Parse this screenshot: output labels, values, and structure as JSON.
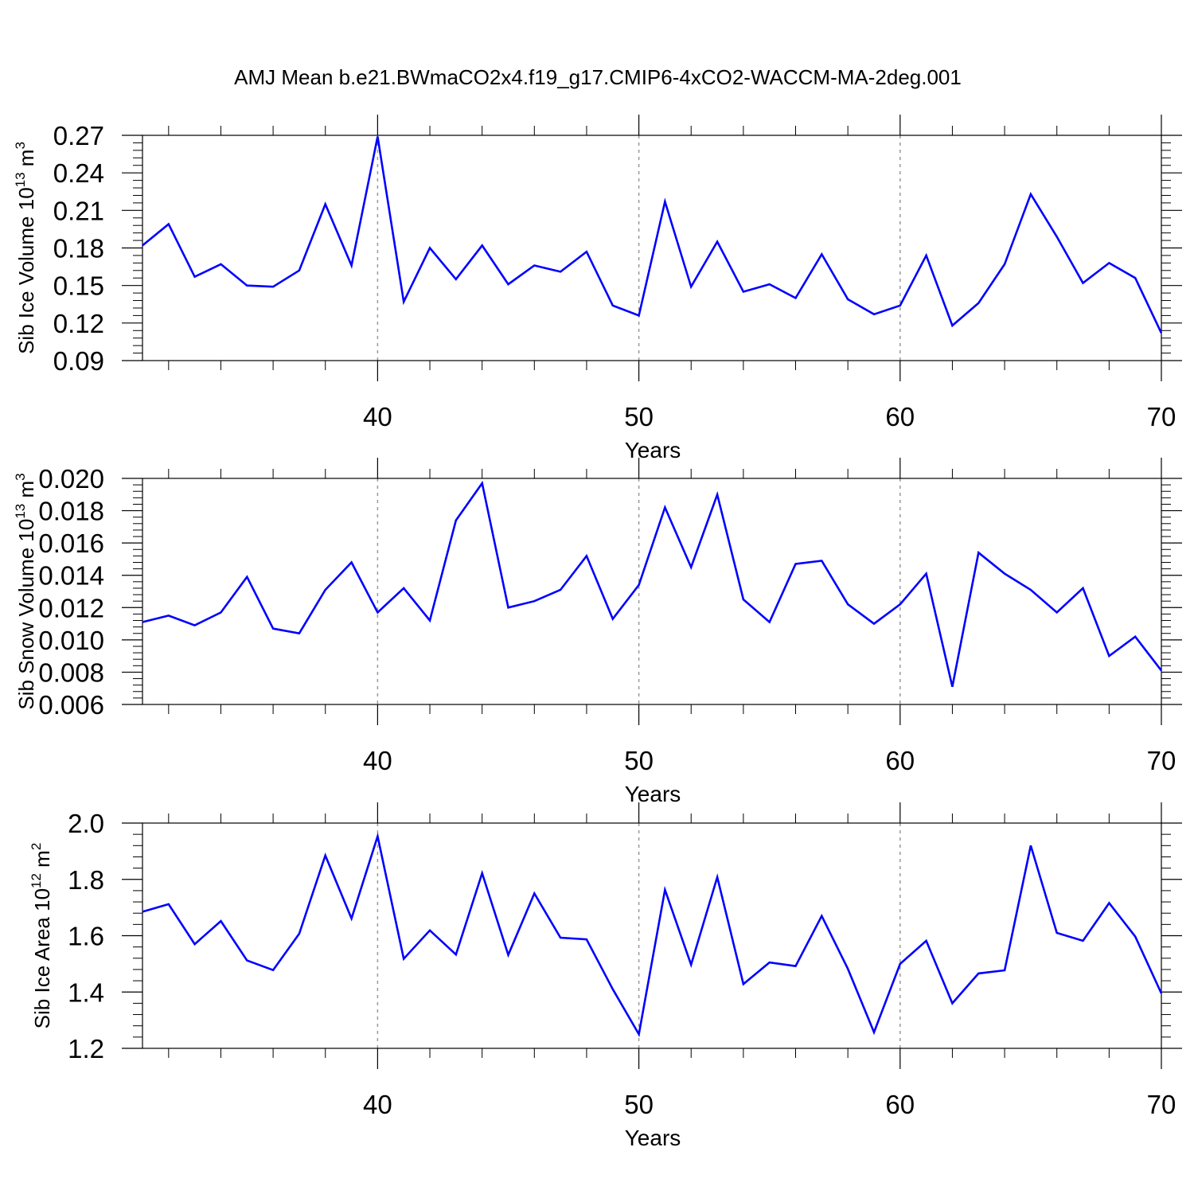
{
  "title": "AMJ Mean b.e21.BWmaCO2x4.f19_g17.CMIP6-4xCO2-WACCM-MA-2deg.001",
  "colors": {
    "line": "#0000ff",
    "axis": "#000000",
    "grid": "#999999",
    "background": "#ffffff"
  },
  "chart_data": [
    {
      "type": "line",
      "ylabel": {
        "text": "Sib Ice Volume 10",
        "sup": "13",
        "unit": " m",
        "unit_sup": "3"
      },
      "xlabel": "Years",
      "xlim": [
        31,
        70
      ],
      "ylim": [
        0.09,
        0.27
      ],
      "xticks": [
        40,
        50,
        60,
        70
      ],
      "xtick_labels": [
        "40",
        "50",
        "60",
        "70"
      ],
      "yticks": [
        0.09,
        0.12,
        0.15,
        0.18,
        0.21,
        0.24,
        0.27
      ],
      "ytick_labels": [
        "0.09",
        "0.12",
        "0.15",
        "0.18",
        "0.21",
        "0.24",
        "0.27"
      ],
      "ygrid_minor_step": 0.006,
      "vgrid": [
        40,
        50,
        60
      ],
      "x": [
        31,
        32,
        33,
        34,
        35,
        36,
        37,
        38,
        39,
        40,
        41,
        42,
        43,
        44,
        45,
        46,
        47,
        48,
        49,
        50,
        51,
        52,
        53,
        54,
        55,
        56,
        57,
        58,
        59,
        60,
        61,
        62,
        63,
        64,
        65,
        66,
        67,
        68,
        69,
        70
      ],
      "series": [
        {
          "name": "Sib Ice Volume",
          "values": [
            0.182,
            0.199,
            0.157,
            0.167,
            0.15,
            0.149,
            0.162,
            0.215,
            0.166,
            0.269,
            0.137,
            0.18,
            0.155,
            0.182,
            0.151,
            0.166,
            0.161,
            0.177,
            0.134,
            0.126,
            0.217,
            0.149,
            0.185,
            0.145,
            0.151,
            0.14,
            0.175,
            0.139,
            0.127,
            0.134,
            0.174,
            0.118,
            0.136,
            0.167,
            0.223,
            0.189,
            0.152,
            0.168,
            0.156,
            0.112
          ]
        }
      ]
    },
    {
      "type": "line",
      "ylabel": {
        "text": "Sib Snow Volume 10",
        "sup": "13",
        "unit": " m",
        "unit_sup": "3"
      },
      "xlabel": "Years",
      "xlim": [
        31,
        70
      ],
      "ylim": [
        0.006,
        0.02
      ],
      "xticks": [
        40,
        50,
        60,
        70
      ],
      "xtick_labels": [
        "40",
        "50",
        "60",
        "70"
      ],
      "yticks": [
        0.006,
        0.008,
        0.01,
        0.012,
        0.014,
        0.016,
        0.018,
        0.02
      ],
      "ytick_labels": [
        "0.006",
        "0.008",
        "0.010",
        "0.012",
        "0.014",
        "0.016",
        "0.018",
        "0.020"
      ],
      "ygrid_minor_step": 0.0004,
      "vgrid": [
        40,
        50,
        60
      ],
      "x": [
        31,
        32,
        33,
        34,
        35,
        36,
        37,
        38,
        39,
        40,
        41,
        42,
        43,
        44,
        45,
        46,
        47,
        48,
        49,
        50,
        51,
        52,
        53,
        54,
        55,
        56,
        57,
        58,
        59,
        60,
        61,
        62,
        63,
        64,
        65,
        66,
        67,
        68,
        69,
        70
      ],
      "series": [
        {
          "name": "Sib Snow Volume",
          "values": [
            0.0111,
            0.0115,
            0.0109,
            0.0117,
            0.0139,
            0.0107,
            0.0104,
            0.0131,
            0.0148,
            0.0117,
            0.0132,
            0.0112,
            0.0174,
            0.0197,
            0.012,
            0.0124,
            0.0131,
            0.0152,
            0.0113,
            0.0134,
            0.0182,
            0.0145,
            0.019,
            0.0125,
            0.0111,
            0.0147,
            0.0149,
            0.0122,
            0.011,
            0.0122,
            0.0141,
            0.0071,
            0.0154,
            0.0141,
            0.0131,
            0.0117,
            0.0132,
            0.009,
            0.0102,
            0.0081
          ]
        }
      ]
    },
    {
      "type": "line",
      "ylabel": {
        "text": "Sib Ice Area 10",
        "sup": "12",
        "unit": " m",
        "unit_sup": "2"
      },
      "xlabel": "Years",
      "xlim": [
        31,
        70
      ],
      "ylim": [
        1.2,
        2.0
      ],
      "xticks": [
        40,
        50,
        60,
        70
      ],
      "xtick_labels": [
        "40",
        "50",
        "60",
        "70"
      ],
      "yticks": [
        1.2,
        1.4,
        1.6,
        1.8,
        2.0
      ],
      "ytick_labels": [
        "1.2",
        "1.4",
        "1.6",
        "1.8",
        "2.0"
      ],
      "ygrid_minor_step": 0.04,
      "vgrid": [
        40,
        50,
        60
      ],
      "x": [
        31,
        32,
        33,
        34,
        35,
        36,
        37,
        38,
        39,
        40,
        41,
        42,
        43,
        44,
        45,
        46,
        47,
        48,
        49,
        50,
        51,
        52,
        53,
        54,
        55,
        56,
        57,
        58,
        59,
        60,
        61,
        62,
        63,
        64,
        65,
        66,
        67,
        68,
        69,
        70
      ],
      "series": [
        {
          "name": "Sib Ice Area",
          "values": [
            1.685,
            1.712,
            1.57,
            1.652,
            1.512,
            1.478,
            1.607,
            1.885,
            1.661,
            1.953,
            1.518,
            1.619,
            1.533,
            1.822,
            1.532,
            1.75,
            1.593,
            1.587,
            1.41,
            1.25,
            1.763,
            1.497,
            1.808,
            1.428,
            1.505,
            1.492,
            1.67,
            1.482,
            1.257,
            1.5,
            1.582,
            1.36,
            1.466,
            1.477,
            1.92,
            1.61,
            1.582,
            1.716,
            1.597,
            1.395
          ]
        }
      ]
    }
  ]
}
